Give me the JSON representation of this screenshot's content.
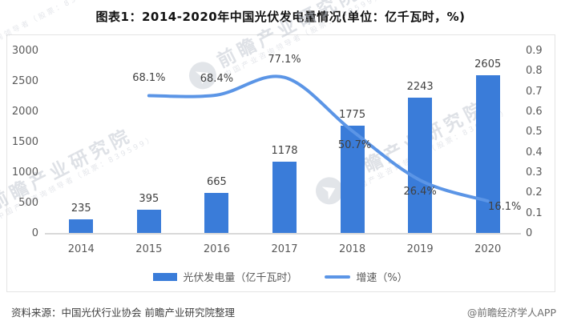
{
  "title": "图表1：2014-2020年中国光伏发电量情况(单位：亿千瓦时，%)",
  "footer": {
    "source": "资料来源：中国光伏行业协会 前瞻产业研究院整理",
    "credit": "@前瞻经济学人APP"
  },
  "watermark": {
    "brand": "前瞻产业研究院",
    "sub": "中国产业咨询领导者（股票：839599）"
  },
  "colors": {
    "bar": "#3a7cd9",
    "line": "#5b95e6",
    "axis_text": "#595959",
    "label_text": "#404040",
    "panel_border": "#e4e4e4"
  },
  "legend": [
    {
      "swatch": "bar",
      "label": "光伏发电量（亿千瓦时）"
    },
    {
      "swatch": "line",
      "label": "增速（%）"
    }
  ],
  "chart_data": {
    "type": "bar+line combo",
    "categories": [
      "2014",
      "2015",
      "2016",
      "2017",
      "2018",
      "2019",
      "2020"
    ],
    "series": [
      {
        "name": "光伏发电量（亿千瓦时）",
        "type": "bar",
        "axis": "left",
        "values": [
          235,
          395,
          665,
          1178,
          1775,
          2243,
          2605
        ],
        "labels": [
          "235",
          "395",
          "665",
          "1178",
          "1775",
          "2243",
          "2605"
        ]
      },
      {
        "name": "增速（%）",
        "type": "line",
        "axis": "right",
        "x": [
          "2015",
          "2016",
          "2017",
          "2018",
          "2019",
          "2020"
        ],
        "values": [
          0.681,
          0.684,
          0.771,
          0.507,
          0.264,
          0.161
        ],
        "labels": [
          "68.1%",
          "68.4%",
          "77.1%",
          "50.7%",
          "26.4%",
          "16.1%"
        ],
        "label_offsets": [
          [
            0,
            -21
          ],
          [
            0,
            -20
          ],
          [
            0,
            -22
          ],
          [
            3,
            18
          ],
          [
            0,
            15
          ],
          [
            21,
            8
          ]
        ]
      }
    ],
    "left_axis": {
      "min": 0,
      "max": 3000,
      "ticks": [
        0,
        500,
        1000,
        1500,
        2000,
        2500,
        3000
      ],
      "tick_labels": [
        "0",
        "500",
        "1000",
        "1500",
        "2000",
        "2500",
        "3000"
      ]
    },
    "right_axis": {
      "min": 0,
      "max": 0.9,
      "ticks": [
        0,
        0.1,
        0.2,
        0.3,
        0.4,
        0.5,
        0.6,
        0.7,
        0.8,
        0.9
      ],
      "tick_labels": [
        "0",
        "0.1",
        "0.2",
        "0.3",
        "0.4",
        "0.5",
        "0.6",
        "0.7",
        "0.8",
        "0.9"
      ]
    },
    "grid": false,
    "legend_position": "bottom-center"
  }
}
